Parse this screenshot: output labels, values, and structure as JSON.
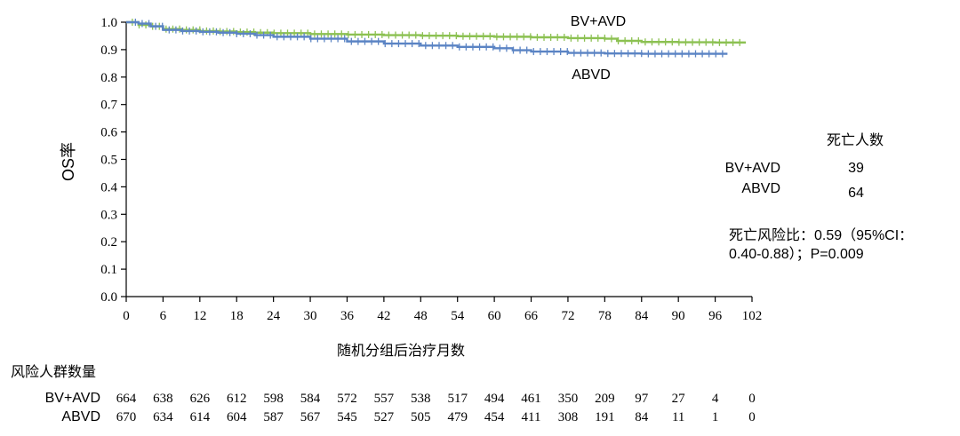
{
  "chart_data": {
    "type": "line",
    "ylabel": "OS率",
    "xlabel": "随机分组后治疗月数",
    "xlim": [
      0,
      102
    ],
    "ylim": [
      0,
      1.0
    ],
    "xticks": [
      "0",
      "6",
      "12",
      "18",
      "24",
      "30",
      "36",
      "42",
      "48",
      "54",
      "60",
      "66",
      "72",
      "78",
      "84",
      "90",
      "96",
      "102"
    ],
    "yticks": [
      "0.0",
      "0.1",
      "0.2",
      "0.3",
      "0.4",
      "0.5",
      "0.6",
      "0.7",
      "0.8",
      "0.9",
      "1.0"
    ],
    "series": [
      {
        "name": "BV+AVD",
        "color": "#8cc152",
        "x": [
          0,
          2,
          4,
          6,
          9,
          12,
          15,
          18,
          21,
          24,
          30,
          36,
          42,
          48,
          54,
          60,
          66,
          72,
          78,
          80,
          84,
          90,
          96,
          101
        ],
        "y": [
          1.0,
          0.99,
          0.985,
          0.975,
          0.972,
          0.968,
          0.966,
          0.964,
          0.962,
          0.96,
          0.957,
          0.955,
          0.953,
          0.951,
          0.949,
          0.947,
          0.945,
          0.942,
          0.94,
          0.932,
          0.928,
          0.927,
          0.926,
          0.926
        ]
      },
      {
        "name": "ABVD",
        "color": "#5b84c4",
        "x": [
          0,
          2,
          4,
          6,
          9,
          12,
          15,
          18,
          21,
          24,
          30,
          36,
          42,
          48,
          54,
          60,
          63,
          66,
          72,
          78,
          84,
          90,
          98
        ],
        "y": [
          1.0,
          0.995,
          0.985,
          0.972,
          0.968,
          0.965,
          0.962,
          0.958,
          0.953,
          0.947,
          0.94,
          0.93,
          0.922,
          0.915,
          0.91,
          0.905,
          0.898,
          0.893,
          0.888,
          0.886,
          0.885,
          0.885,
          0.885
        ]
      }
    ],
    "curve_labels": [
      "BV+AVD",
      "ABVD"
    ]
  },
  "deaths": {
    "title": "死亡人数",
    "rows": [
      {
        "name": "BV+AVD",
        "value": "39"
      },
      {
        "name": "ABVD",
        "value": "64"
      }
    ]
  },
  "hazard": {
    "line1": "死亡风险比：0.59（95%CI：",
    "line2": "0.40-0.88）；P=0.009"
  },
  "risk_table": {
    "title": "风险人群数量",
    "rows": [
      {
        "name": "BV+AVD",
        "values": [
          "664",
          "638",
          "626",
          "612",
          "598",
          "584",
          "572",
          "557",
          "538",
          "517",
          "494",
          "461",
          "350",
          "209",
          "97",
          "27",
          "4",
          "0"
        ]
      },
      {
        "name": "ABVD",
        "values": [
          "670",
          "634",
          "614",
          "604",
          "587",
          "567",
          "545",
          "527",
          "505",
          "479",
          "454",
          "411",
          "308",
          "191",
          "84",
          "11",
          "1",
          "0"
        ]
      }
    ]
  }
}
